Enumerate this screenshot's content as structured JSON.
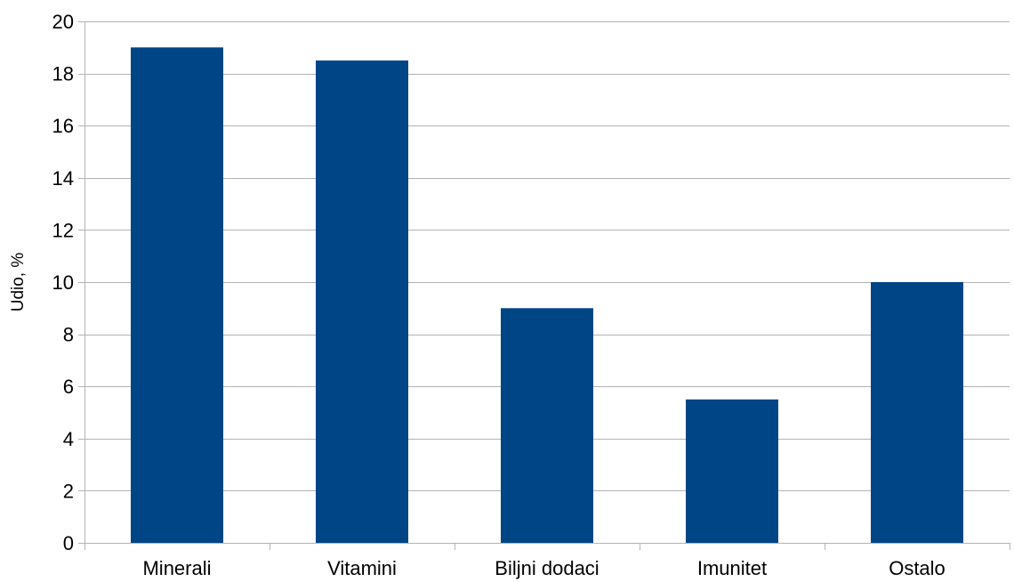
{
  "chart_data": {
    "type": "bar",
    "title": "",
    "xlabel": "",
    "ylabel": "Udio, %",
    "categories": [
      "Minerali",
      "Vitamini",
      "Biljni dodaci",
      "Imunitet",
      "Ostalo"
    ],
    "values": [
      19,
      18.5,
      9,
      5.5,
      10
    ],
    "ylim": [
      0,
      20
    ],
    "yticks": [
      0,
      2,
      4,
      6,
      8,
      10,
      12,
      14,
      16,
      18,
      20
    ],
    "grid": true,
    "legend": "none",
    "bar_color": "#004586",
    "grid_color": "#b3b3b3"
  }
}
